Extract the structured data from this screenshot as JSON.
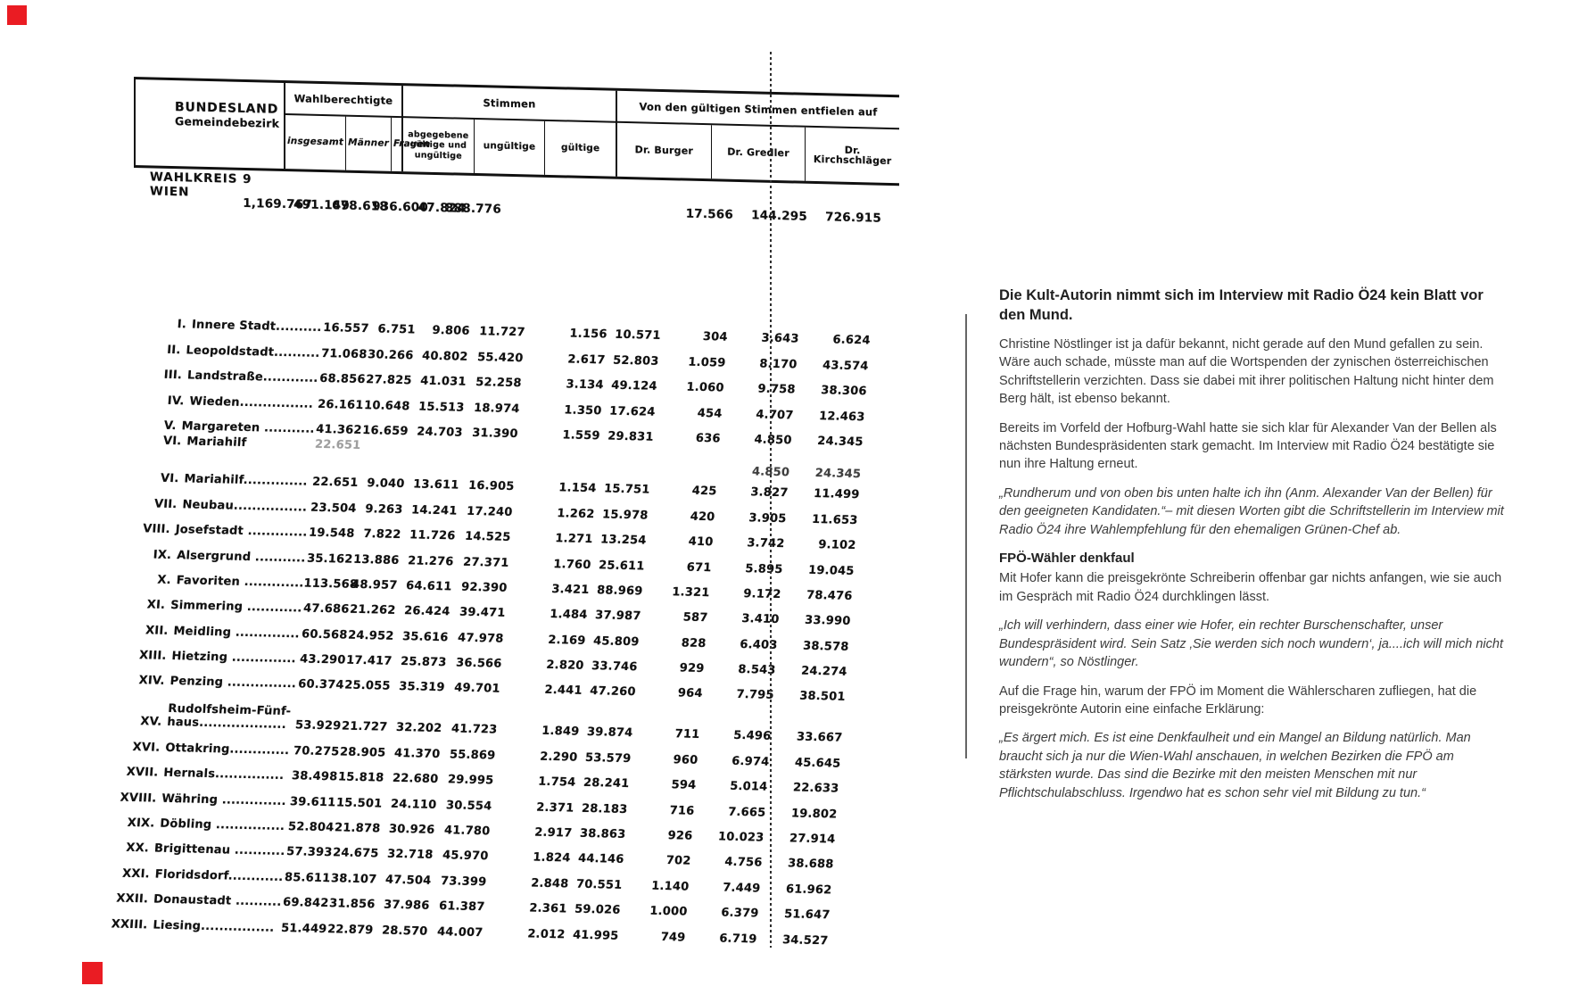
{
  "scan_table": {
    "header": {
      "label_line1": "BUNDESLAND",
      "label_line2": "Gemeindebezirk",
      "group1": "Wahlberechtigte",
      "group1_cols": [
        "insgesamt",
        "Männer",
        "Frauen"
      ],
      "group2": "Stimmen",
      "group2_cols": [
        "abgegebene gültige und ungültige",
        "ungültige",
        "gültige"
      ],
      "group3": "Von den gültigen Stimmen entfielen auf",
      "group3_cols": [
        "Dr. Burger",
        "Dr. Gredler",
        "Dr. Kirchschläger"
      ]
    },
    "summary": {
      "label_line1": "WAHLKREIS 9",
      "label_line2": "WIEN",
      "values": [
        "1,169.767",
        "491.149",
        "678.618",
        "936.600",
        "47.824",
        "888.776",
        "17.566",
        "144.295",
        "726.915"
      ]
    },
    "rows_part1": [
      {
        "num": "I.",
        "name": "Innere Stadt..........",
        "values": [
          "16.557",
          "6.751",
          "9.806",
          "11.727",
          "1.156",
          "10.571",
          "304",
          "3.643",
          "6.624"
        ]
      },
      {
        "num": "II.",
        "name": "Leopoldstadt..........",
        "values": [
          "71.068",
          "30.266",
          "40.802",
          "55.420",
          "2.617",
          "52.803",
          "1.059",
          "8.170",
          "43.574"
        ]
      },
      {
        "num": "III.",
        "name": "Landstraße............",
        "values": [
          "68.856",
          "27.825",
          "41.031",
          "52.258",
          "3.134",
          "49.124",
          "1.060",
          "9.758",
          "38.306"
        ]
      },
      {
        "num": "IV.",
        "name": "Wieden................",
        "values": [
          "26.161",
          "10.648",
          "15.513",
          "18.974",
          "1.350",
          "17.624",
          "454",
          "4.707",
          "12.463"
        ]
      },
      {
        "num": "V.",
        "name": "Margareten ...........",
        "values": [
          "41.362",
          "16.659",
          "24.703",
          "31.390",
          "1.559",
          "29.831",
          "636",
          "4.850",
          "24.345"
        ]
      }
    ],
    "cut_row": {
      "num": "VI.",
      "name": "Mariahilf",
      "values": [
        "22.651",
        "",
        "",
        "",
        "",
        "",
        "",
        "",
        ""
      ]
    },
    "remnant": {
      "gredler": "4.850",
      "kirchschlaeger": "24.345"
    },
    "rows_part2": [
      {
        "num": "VI.",
        "name": "Mariahilf..............",
        "values": [
          "22.651",
          "9.040",
          "13.611",
          "16.905",
          "1.154",
          "15.751",
          "425",
          "3.827",
          "11.499"
        ]
      },
      {
        "num": "VII.",
        "name": "Neubau................",
        "values": [
          "23.504",
          "9.263",
          "14.241",
          "17.240",
          "1.262",
          "15.978",
          "420",
          "3.905",
          "11.653"
        ]
      },
      {
        "num": "VIII.",
        "name": "Josefstadt .............",
        "values": [
          "19.548",
          "7.822",
          "11.726",
          "14.525",
          "1.271",
          "13.254",
          "410",
          "3.742",
          "9.102"
        ]
      },
      {
        "num": "IX.",
        "name": "Alsergrund ...........",
        "values": [
          "35.162",
          "13.886",
          "21.276",
          "27.371",
          "1.760",
          "25.611",
          "671",
          "5.895",
          "19.045"
        ]
      },
      {
        "num": "X.",
        "name": "Favoriten .............",
        "values": [
          "113.568",
          "48.957",
          "64.611",
          "92.390",
          "3.421",
          "88.969",
          "1.321",
          "9.172",
          "78.476"
        ]
      },
      {
        "num": "XI.",
        "name": "Simmering ............",
        "values": [
          "47.686",
          "21.262",
          "26.424",
          "39.471",
          "1.484",
          "37.987",
          "587",
          "3.410",
          "33.990"
        ]
      },
      {
        "num": "XII.",
        "name": "Meidling ..............",
        "values": [
          "60.568",
          "24.952",
          "35.616",
          "47.978",
          "2.169",
          "45.809",
          "828",
          "6.403",
          "38.578"
        ]
      },
      {
        "num": "XIII.",
        "name": "Hietzing ..............",
        "values": [
          "43.290",
          "17.417",
          "25.873",
          "36.566",
          "2.820",
          "33.746",
          "929",
          "8.543",
          "24.274"
        ]
      },
      {
        "num": "XIV.",
        "name": "Penzing ...............",
        "values": [
          "60.374",
          "25.055",
          "35.319",
          "49.701",
          "2.441",
          "47.260",
          "964",
          "7.795",
          "38.501"
        ]
      },
      {
        "num": "XV.",
        "name": "Rudolfsheim-Fünf-",
        "name2": "haus...................",
        "values": [
          "53.929",
          "21.727",
          "32.202",
          "41.723",
          "1.849",
          "39.874",
          "711",
          "5.496",
          "33.667"
        ]
      },
      {
        "num": "XVI.",
        "name": "Ottakring.............",
        "values": [
          "70.275",
          "28.905",
          "41.370",
          "55.869",
          "2.290",
          "53.579",
          "960",
          "6.974",
          "45.645"
        ]
      },
      {
        "num": "XVII.",
        "name": "Hernals...............",
        "values": [
          "38.498",
          "15.818",
          "22.680",
          "29.995",
          "1.754",
          "28.241",
          "594",
          "5.014",
          "22.633"
        ]
      },
      {
        "num": "XVIII.",
        "name": "Währing ..............",
        "values": [
          "39.611",
          "15.501",
          "24.110",
          "30.554",
          "2.371",
          "28.183",
          "716",
          "7.665",
          "19.802"
        ]
      },
      {
        "num": "XIX.",
        "name": "Döbling ...............",
        "values": [
          "52.804",
          "21.878",
          "30.926",
          "41.780",
          "2.917",
          "38.863",
          "926",
          "10.023",
          "27.914"
        ]
      },
      {
        "num": "XX.",
        "name": "Brigittenau ...........",
        "values": [
          "57.393",
          "24.675",
          "32.718",
          "45.970",
          "1.824",
          "44.146",
          "702",
          "4.756",
          "38.688"
        ]
      },
      {
        "num": "XXI.",
        "name": "Floridsdorf............",
        "values": [
          "85.611",
          "38.107",
          "47.504",
          "73.399",
          "2.848",
          "70.551",
          "1.140",
          "7.449",
          "61.962"
        ]
      },
      {
        "num": "XXII.",
        "name": "Donaustadt ..........",
        "values": [
          "69.842",
          "31.856",
          "37.986",
          "61.387",
          "2.361",
          "59.026",
          "1.000",
          "6.379",
          "51.647"
        ]
      },
      {
        "num": "XXIII.",
        "name": "Liesing................",
        "values": [
          "51.449",
          "22.879",
          "28.570",
          "44.007",
          "2.012",
          "41.995",
          "749",
          "6.719",
          "34.527"
        ]
      }
    ]
  },
  "article": {
    "heading": "Die Kult-Autorin nimmt sich im Interview mit Radio Ö24 kein Blatt vor den Mund.",
    "paragraphs": [
      {
        "style": "normal",
        "text": "Christine Nöstlinger ist ja dafür bekannt, nicht gerade auf den Mund gefallen zu sein. Wäre auch schade, müsste man auf die Wortspenden der zynischen österreichischen Schriftstellerin verzichten. Dass sie dabei mit ihrer politischen Haltung nicht hinter dem Berg hält, ist ebenso bekannt."
      },
      {
        "style": "normal",
        "text": "Bereits im Vorfeld der Hofburg-Wahl hatte sie sich klar für Alexander Van der Bellen als nächsten Bundespräsidenten stark gemacht. Im Interview mit Radio Ö24 bestätigte sie nun ihre Haltung erneut."
      },
      {
        "style": "italic",
        "text": "„Rundherum und von oben bis unten halte ich ihn (Anm. Alexander Van der Bellen) für den geeigneten Kandidaten.“– mit diesen Worten gibt die Schriftstellerin im Interview mit Radio Ö24 ihre Wahlempfehlung für den ehemaligen Grünen-Chef ab."
      },
      {
        "style": "subheading",
        "text": "FPÖ-Wähler denkfaul"
      },
      {
        "style": "after-sub",
        "text": "Mit Hofer kann die preisgekrönte Schreiberin offenbar gar nichts anfangen, wie sie auch im Gespräch mit Radio Ö24 durchklingen lässt."
      },
      {
        "style": "italic",
        "text": "„Ich will verhindern, dass einer wie Hofer, ein rechter Burschenschafter, unser Bundespräsident wird. Sein Satz ‚Sie werden sich noch wundern‘, ja....ich will mich nicht wundern“, so Nöstlinger."
      },
      {
        "style": "normal",
        "text": "Auf die Frage hin, warum der FPÖ im Moment die Wählerscharen zufliegen, hat die preisgekrönte Autorin eine einfache Erklärung:"
      },
      {
        "style": "italic",
        "text": "„Es ärgert mich. Es ist eine Denkfaulheit und ein Mangel an Bildung natürlich. Man braucht sich ja nur die Wien-Wahl anschauen, in welchen Bezirken die FPÖ am stärksten wurde. Das sind die Bezirke mit den meisten Menschen mit nur Pflichtschulabschluss. Irgendwo hat es schon sehr viel mit Bildung zu tun.“"
      }
    ]
  },
  "annotations": {
    "red_marker_color": "#ea1c23"
  }
}
